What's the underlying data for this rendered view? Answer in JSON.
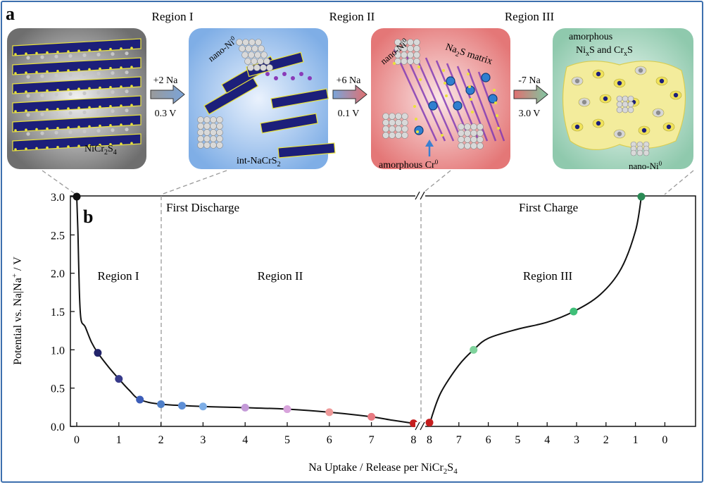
{
  "panel_a": {
    "label": "a",
    "regions": [
      "Region I",
      "Region II",
      "Region III"
    ],
    "structures": [
      {
        "name": "NiCr2S4",
        "label_main": "NiCr",
        "label_sub1": "2",
        "label_mid": "S",
        "label_sub2": "4"
      },
      {
        "name": "int-NaCrS2",
        "label_main": "int-NaCrS",
        "label_sub": "2",
        "nano_ni": "nano-Ni",
        "nano_ni_sup": "0"
      },
      {
        "name": "Na2S matrix",
        "nano_ni": "nano-Ni",
        "nano_ni_sup": "0",
        "matrix_a": "Na",
        "matrix_sub": "2",
        "matrix_b": "S matrix",
        "cr": "amorphous Cr",
        "cr_sup": "0"
      },
      {
        "name": "amorphous NixS and CrxS",
        "line1": "amorphous",
        "ni": "Ni",
        "x1": "x",
        "mid": "S and Cr",
        "x2": "x",
        "s": "S",
        "nano_ni": "nano-Ni",
        "nano_ni_sup": "0"
      }
    ],
    "arrows": [
      {
        "na": "+2 Na",
        "v": "0.3 V"
      },
      {
        "na": "+6 Na",
        "v": "0.1 V"
      },
      {
        "na": "-7 Na",
        "v": "3.0 V"
      }
    ],
    "colors": {
      "panel1": "#7d7d7d",
      "panel2": "#8fb5e6",
      "panel3": "#e98a8a",
      "panel4": "#9fd1b8",
      "octahedra": "#1c1f7a",
      "sulfur": "#e9e23a",
      "nickel": "#c8c8c8"
    }
  },
  "chart_data": {
    "type": "line",
    "panel_label": "b",
    "ylabel_parts": {
      "pre": "Potential vs. Na|Na",
      "sup": "+",
      "post": " / V"
    },
    "xlabel_parts": {
      "pre": "Na Uptake / Release per NiCr",
      "sub1": "2",
      "mid": "S",
      "sub2": "4"
    },
    "ylim": [
      0,
      3.0
    ],
    "yticks": [
      "0.0",
      "0.5",
      "1.0",
      "1.5",
      "2.0",
      "2.5",
      "3.0"
    ],
    "discharge_xticks": [
      "0",
      "1",
      "2",
      "3",
      "4",
      "5",
      "6",
      "7",
      "8"
    ],
    "charge_xticks": [
      "8",
      "7",
      "6",
      "5",
      "4",
      "3",
      "2",
      "1",
      "0"
    ],
    "annotations": {
      "discharge": "First Discharge",
      "charge": "First Charge",
      "region1": "Region I",
      "region2": "Region II",
      "region3": "Region III"
    },
    "discharge_curve": [
      [
        0,
        3.0
      ],
      [
        0.03,
        2.5
      ],
      [
        0.06,
        1.8
      ],
      [
        0.1,
        1.4
      ],
      [
        0.2,
        1.3
      ],
      [
        0.35,
        1.1
      ],
      [
        0.5,
        0.96
      ],
      [
        0.75,
        0.78
      ],
      [
        1.0,
        0.62
      ],
      [
        1.25,
        0.47
      ],
      [
        1.5,
        0.35
      ],
      [
        2.0,
        0.29
      ],
      [
        3.0,
        0.26
      ],
      [
        4.0,
        0.245
      ],
      [
        5.0,
        0.225
      ],
      [
        6.0,
        0.185
      ],
      [
        7.0,
        0.125
      ],
      [
        7.5,
        0.08
      ],
      [
        8.0,
        0.04
      ]
    ],
    "charge_curve": [
      [
        8.0,
        0.0
      ],
      [
        7.9,
        0.15
      ],
      [
        7.6,
        0.45
      ],
      [
        7.0,
        0.8
      ],
      [
        6.5,
        1.0
      ],
      [
        6.0,
        1.15
      ],
      [
        5.0,
        1.27
      ],
      [
        4.0,
        1.36
      ],
      [
        3.1,
        1.5
      ],
      [
        2.2,
        1.72
      ],
      [
        1.5,
        2.05
      ],
      [
        1.0,
        2.55
      ],
      [
        0.8,
        3.0
      ]
    ],
    "discharge_points": [
      {
        "x": 0.0,
        "y": 3.0,
        "color": "#111111"
      },
      {
        "x": 0.5,
        "y": 0.96,
        "color": "#22246a"
      },
      {
        "x": 1.0,
        "y": 0.62,
        "color": "#373a8a"
      },
      {
        "x": 1.5,
        "y": 0.35,
        "color": "#3c5db8"
      },
      {
        "x": 2.0,
        "y": 0.29,
        "color": "#4f7fc7"
      },
      {
        "x": 2.5,
        "y": 0.27,
        "color": "#5e8fd6"
      },
      {
        "x": 3.0,
        "y": 0.26,
        "color": "#7eaee6"
      },
      {
        "x": 4.0,
        "y": 0.245,
        "color": "#c49ad8"
      },
      {
        "x": 5.0,
        "y": 0.225,
        "color": "#d8a4dc"
      },
      {
        "x": 6.0,
        "y": 0.185,
        "color": "#ee9a9a"
      },
      {
        "x": 7.0,
        "y": 0.125,
        "color": "#e87a82"
      },
      {
        "x": 8.0,
        "y": 0.04,
        "color": "#c41e1e"
      }
    ],
    "charge_points": [
      {
        "x": 8.0,
        "y": 0.05,
        "color": "#c41e1e"
      },
      {
        "x": 6.5,
        "y": 1.0,
        "color": "#7fd39c"
      },
      {
        "x": 3.1,
        "y": 1.5,
        "color": "#3fbf78"
      },
      {
        "x": 0.8,
        "y": 3.0,
        "color": "#2a8a55"
      }
    ]
  }
}
